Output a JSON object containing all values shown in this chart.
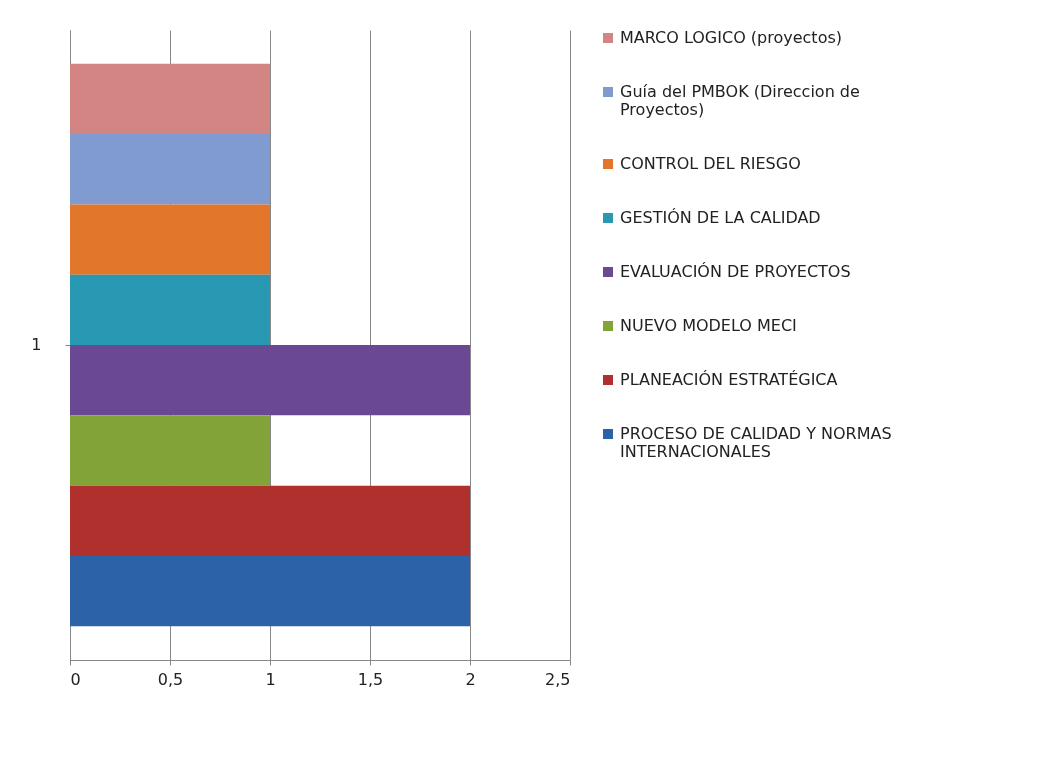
{
  "chart_data": {
    "type": "bar",
    "orientation": "horizontal",
    "categories": [
      "1"
    ],
    "series": [
      {
        "name": "MARCO LOGICO (proyectos)",
        "color": "#d38583",
        "values": [
          1
        ]
      },
      {
        "name": "Guía del PMBOK (Direccion de Proyectos)",
        "color": "#7f9bd0",
        "values": [
          1
        ]
      },
      {
        "name": "CONTROL DEL RIESGO",
        "color": "#e2762a",
        "values": [
          1
        ]
      },
      {
        "name": "GESTIÓN DE LA CALIDAD",
        "color": "#2998b2",
        "values": [
          1
        ]
      },
      {
        "name": "EVALUACIÓN DE PROYECTOS",
        "color": "#6a4893",
        "values": [
          2
        ]
      },
      {
        "name": "NUEVO MODELO MECI",
        "color": "#82a337",
        "values": [
          1
        ]
      },
      {
        "name": "PLANEACIÓN ESTRATÉGICA",
        "color": "#b0302e",
        "values": [
          2
        ]
      },
      {
        "name": "PROCESO DE CALIDAD Y NORMAS INTERNACIONALES",
        "color": "#2c62a8",
        "values": [
          2
        ]
      }
    ],
    "xlim": [
      0,
      2.5
    ],
    "xticks": [
      0,
      {
        "value": 0.5,
        "label": "0,5"
      },
      1,
      {
        "value": 1.5,
        "label": "1,5"
      },
      2,
      {
        "value": 2.5,
        "label": "2,5"
      }
    ],
    "grid": "x",
    "legend": "right"
  }
}
